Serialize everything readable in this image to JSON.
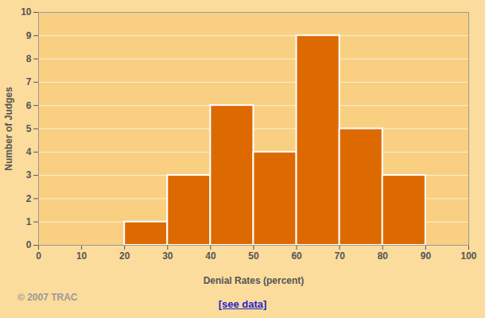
{
  "chart_data": {
    "type": "histogram",
    "x_label": "Denial Rates (percent)",
    "y_label": "Number of Judges",
    "bins": [
      20,
      30,
      40,
      50,
      60,
      70,
      80,
      90
    ],
    "values": [
      1,
      3,
      6,
      4,
      9,
      5,
      3
    ],
    "color": "#dd6a00",
    "xlim": [
      0,
      100
    ],
    "xticks": [
      0,
      10,
      20,
      30,
      40,
      50,
      60,
      70,
      80,
      90,
      100
    ],
    "ylim": [
      0,
      10
    ],
    "yticks": [
      0,
      1,
      2,
      3,
      4,
      5,
      6,
      7,
      8,
      9,
      10
    ],
    "grid": true,
    "annotations": [
      "© 2007 TRAC",
      "[see data]"
    ]
  }
}
